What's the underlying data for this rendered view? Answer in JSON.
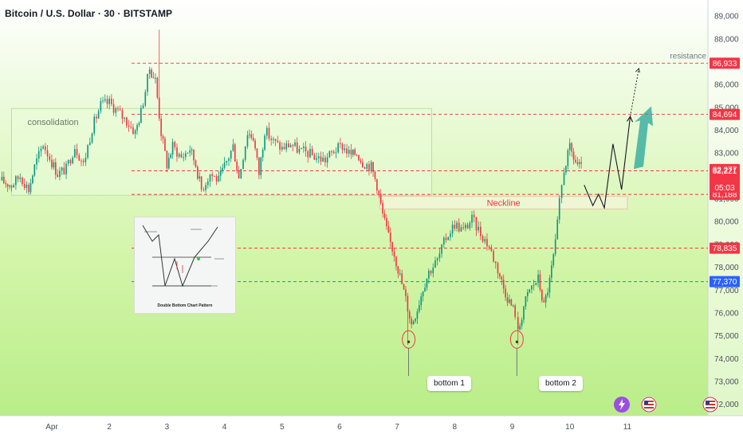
{
  "chart_data": {
    "type": "candlestick",
    "title": "Bitcoin / U.S. Dollar · 30 · BITSTAMP",
    "ylim": [
      71500,
      89700
    ],
    "yticks": [
      89000,
      88000,
      87000,
      86000,
      85000,
      84000,
      83000,
      82000,
      81000,
      80000,
      79000,
      78000,
      77000,
      76000,
      75000,
      74000,
      73000,
      72000
    ],
    "ytick_labels": [
      "89,000",
      "88,000",
      "87,000",
      "86,000",
      "85,000",
      "84,000",
      "83,000",
      "82,000",
      "81,000",
      "80,000",
      "79,000",
      "78,000",
      "77,000",
      "76,000",
      "75,000",
      "74,000",
      "73,000",
      "72,000"
    ],
    "xlim": [
      -0.9,
      11.4
    ],
    "xticks": [
      {
        "label": "Apr",
        "x": 0
      },
      {
        "label": "2",
        "x": 1
      },
      {
        "label": "3",
        "x": 2
      },
      {
        "label": "4",
        "x": 3
      },
      {
        "label": "5",
        "x": 4
      },
      {
        "label": "6",
        "x": 5
      },
      {
        "label": "7",
        "x": 6
      },
      {
        "label": "8",
        "x": 7
      },
      {
        "label": "9",
        "x": 8
      },
      {
        "label": "10",
        "x": 9
      },
      {
        "label": "11",
        "x": 10
      }
    ],
    "price_path": [
      [
        -0.9,
        81800
      ],
      [
        -0.7,
        81600
      ],
      [
        -0.55,
        82000
      ],
      [
        -0.4,
        81400
      ],
      [
        -0.3,
        82400
      ],
      [
        -0.15,
        83400
      ],
      [
        0.0,
        82600
      ],
      [
        0.1,
        82100
      ],
      [
        0.25,
        82300
      ],
      [
        0.4,
        83300
      ],
      [
        0.55,
        82500
      ],
      [
        0.7,
        84100
      ],
      [
        0.85,
        85100
      ],
      [
        1.0,
        85200
      ],
      [
        1.15,
        84800
      ],
      [
        1.3,
        84400
      ],
      [
        1.45,
        83900
      ],
      [
        1.55,
        84800
      ],
      [
        1.7,
        86700
      ],
      [
        1.8,
        86200
      ],
      [
        1.9,
        83900
      ],
      [
        2.0,
        82500
      ],
      [
        2.1,
        83300
      ],
      [
        2.25,
        82800
      ],
      [
        2.4,
        83200
      ],
      [
        2.5,
        82500
      ],
      [
        2.6,
        81400
      ],
      [
        2.75,
        82100
      ],
      [
        2.9,
        81800
      ],
      [
        3.0,
        82400
      ],
      [
        3.15,
        83300
      ],
      [
        3.25,
        81900
      ],
      [
        3.4,
        83900
      ],
      [
        3.5,
        83700
      ],
      [
        3.6,
        82100
      ],
      [
        3.7,
        84000
      ],
      [
        3.85,
        83500
      ],
      [
        4.0,
        83200
      ],
      [
        4.15,
        83400
      ],
      [
        4.3,
        83100
      ],
      [
        4.45,
        83000
      ],
      [
        4.6,
        82800
      ],
      [
        4.75,
        82700
      ],
      [
        4.9,
        83100
      ],
      [
        5.05,
        83300
      ],
      [
        5.2,
        82900
      ],
      [
        5.3,
        83000
      ],
      [
        5.4,
        82600
      ],
      [
        5.55,
        82400
      ],
      [
        5.65,
        81600
      ],
      [
        5.75,
        80300
      ],
      [
        5.85,
        79300
      ],
      [
        5.95,
        78600
      ],
      [
        6.05,
        77600
      ],
      [
        6.15,
        76600
      ],
      [
        6.25,
        75500
      ],
      [
        6.35,
        76200
      ],
      [
        6.45,
        77100
      ],
      [
        6.55,
        77800
      ],
      [
        6.7,
        78300
      ],
      [
        6.85,
        79300
      ],
      [
        7.0,
        79900
      ],
      [
        7.15,
        79600
      ],
      [
        7.3,
        80100
      ],
      [
        7.45,
        79500
      ],
      [
        7.6,
        78900
      ],
      [
        7.75,
        77900
      ],
      [
        7.85,
        77100
      ],
      [
        7.95,
        76500
      ],
      [
        8.05,
        76000
      ],
      [
        8.1,
        75100
      ],
      [
        8.2,
        76300
      ],
      [
        8.3,
        77000
      ],
      [
        8.45,
        77500
      ],
      [
        8.55,
        76300
      ],
      [
        8.65,
        77400
      ],
      [
        8.75,
        79000
      ],
      [
        8.82,
        80800
      ],
      [
        8.9,
        82300
      ],
      [
        9.0,
        83200
      ],
      [
        9.1,
        82600
      ],
      [
        9.2,
        82300
      ]
    ],
    "wick_extremes": [
      {
        "x": 1.85,
        "high": 88400
      },
      {
        "x": 6.2,
        "low": 74600
      },
      {
        "x": 8.08,
        "low": 74600
      }
    ],
    "current_price": 82277,
    "countdown": "05:03",
    "price_levels": [
      {
        "value": 86933,
        "label": "86,933",
        "color": "#f23645",
        "style": "dashed"
      },
      {
        "value": 84694,
        "label": "84,694",
        "color": "#f23645",
        "style": "dashed"
      },
      {
        "value": 82221,
        "label": "82,221",
        "color": "#f23645",
        "style": "dashed"
      },
      {
        "value": 81188,
        "label": "81,188",
        "color": "#f23645",
        "style": "dashed"
      },
      {
        "value": 78835,
        "label": "78,835",
        "color": "#f23645",
        "style": "dashed"
      },
      {
        "value": 77370,
        "label": "77,370",
        "color": "#2962ff",
        "style": "dashed"
      }
    ],
    "zones": [
      {
        "name": "consolidation",
        "label": "consolidation",
        "x0": -0.7,
        "x1": 6.6,
        "y_top": 84950,
        "y_bottom": 81150
      },
      {
        "name": "neckline",
        "label": "Neckline",
        "x0": 5.7,
        "x1": 10.0,
        "y_top": 81100,
        "y_bottom": 80550
      }
    ],
    "projection_path": [
      [
        9.25,
        81600
      ],
      [
        9.4,
        80700
      ],
      [
        9.5,
        81200
      ],
      [
        9.6,
        80600
      ],
      [
        9.75,
        83400
      ],
      [
        9.9,
        81400
      ],
      [
        10.05,
        84600
      ]
    ],
    "dotted_target_path": [
      [
        10.05,
        84600
      ],
      [
        10.2,
        86700
      ]
    ],
    "annotations_on_chart": {
      "resistance": "resistance"
    },
    "up_arrow": {
      "x": 10.25,
      "from": 82300,
      "to": 85050
    },
    "colors": {
      "up": "#089981",
      "down": "#f23645",
      "accent_red": "#f23645",
      "accent_blue": "#2962ff"
    }
  },
  "inset": {
    "title": "Double Bottom Chart Pattern"
  },
  "annotations": {
    "bottom1": "bottom 1",
    "bottom2": "bottom 2"
  }
}
